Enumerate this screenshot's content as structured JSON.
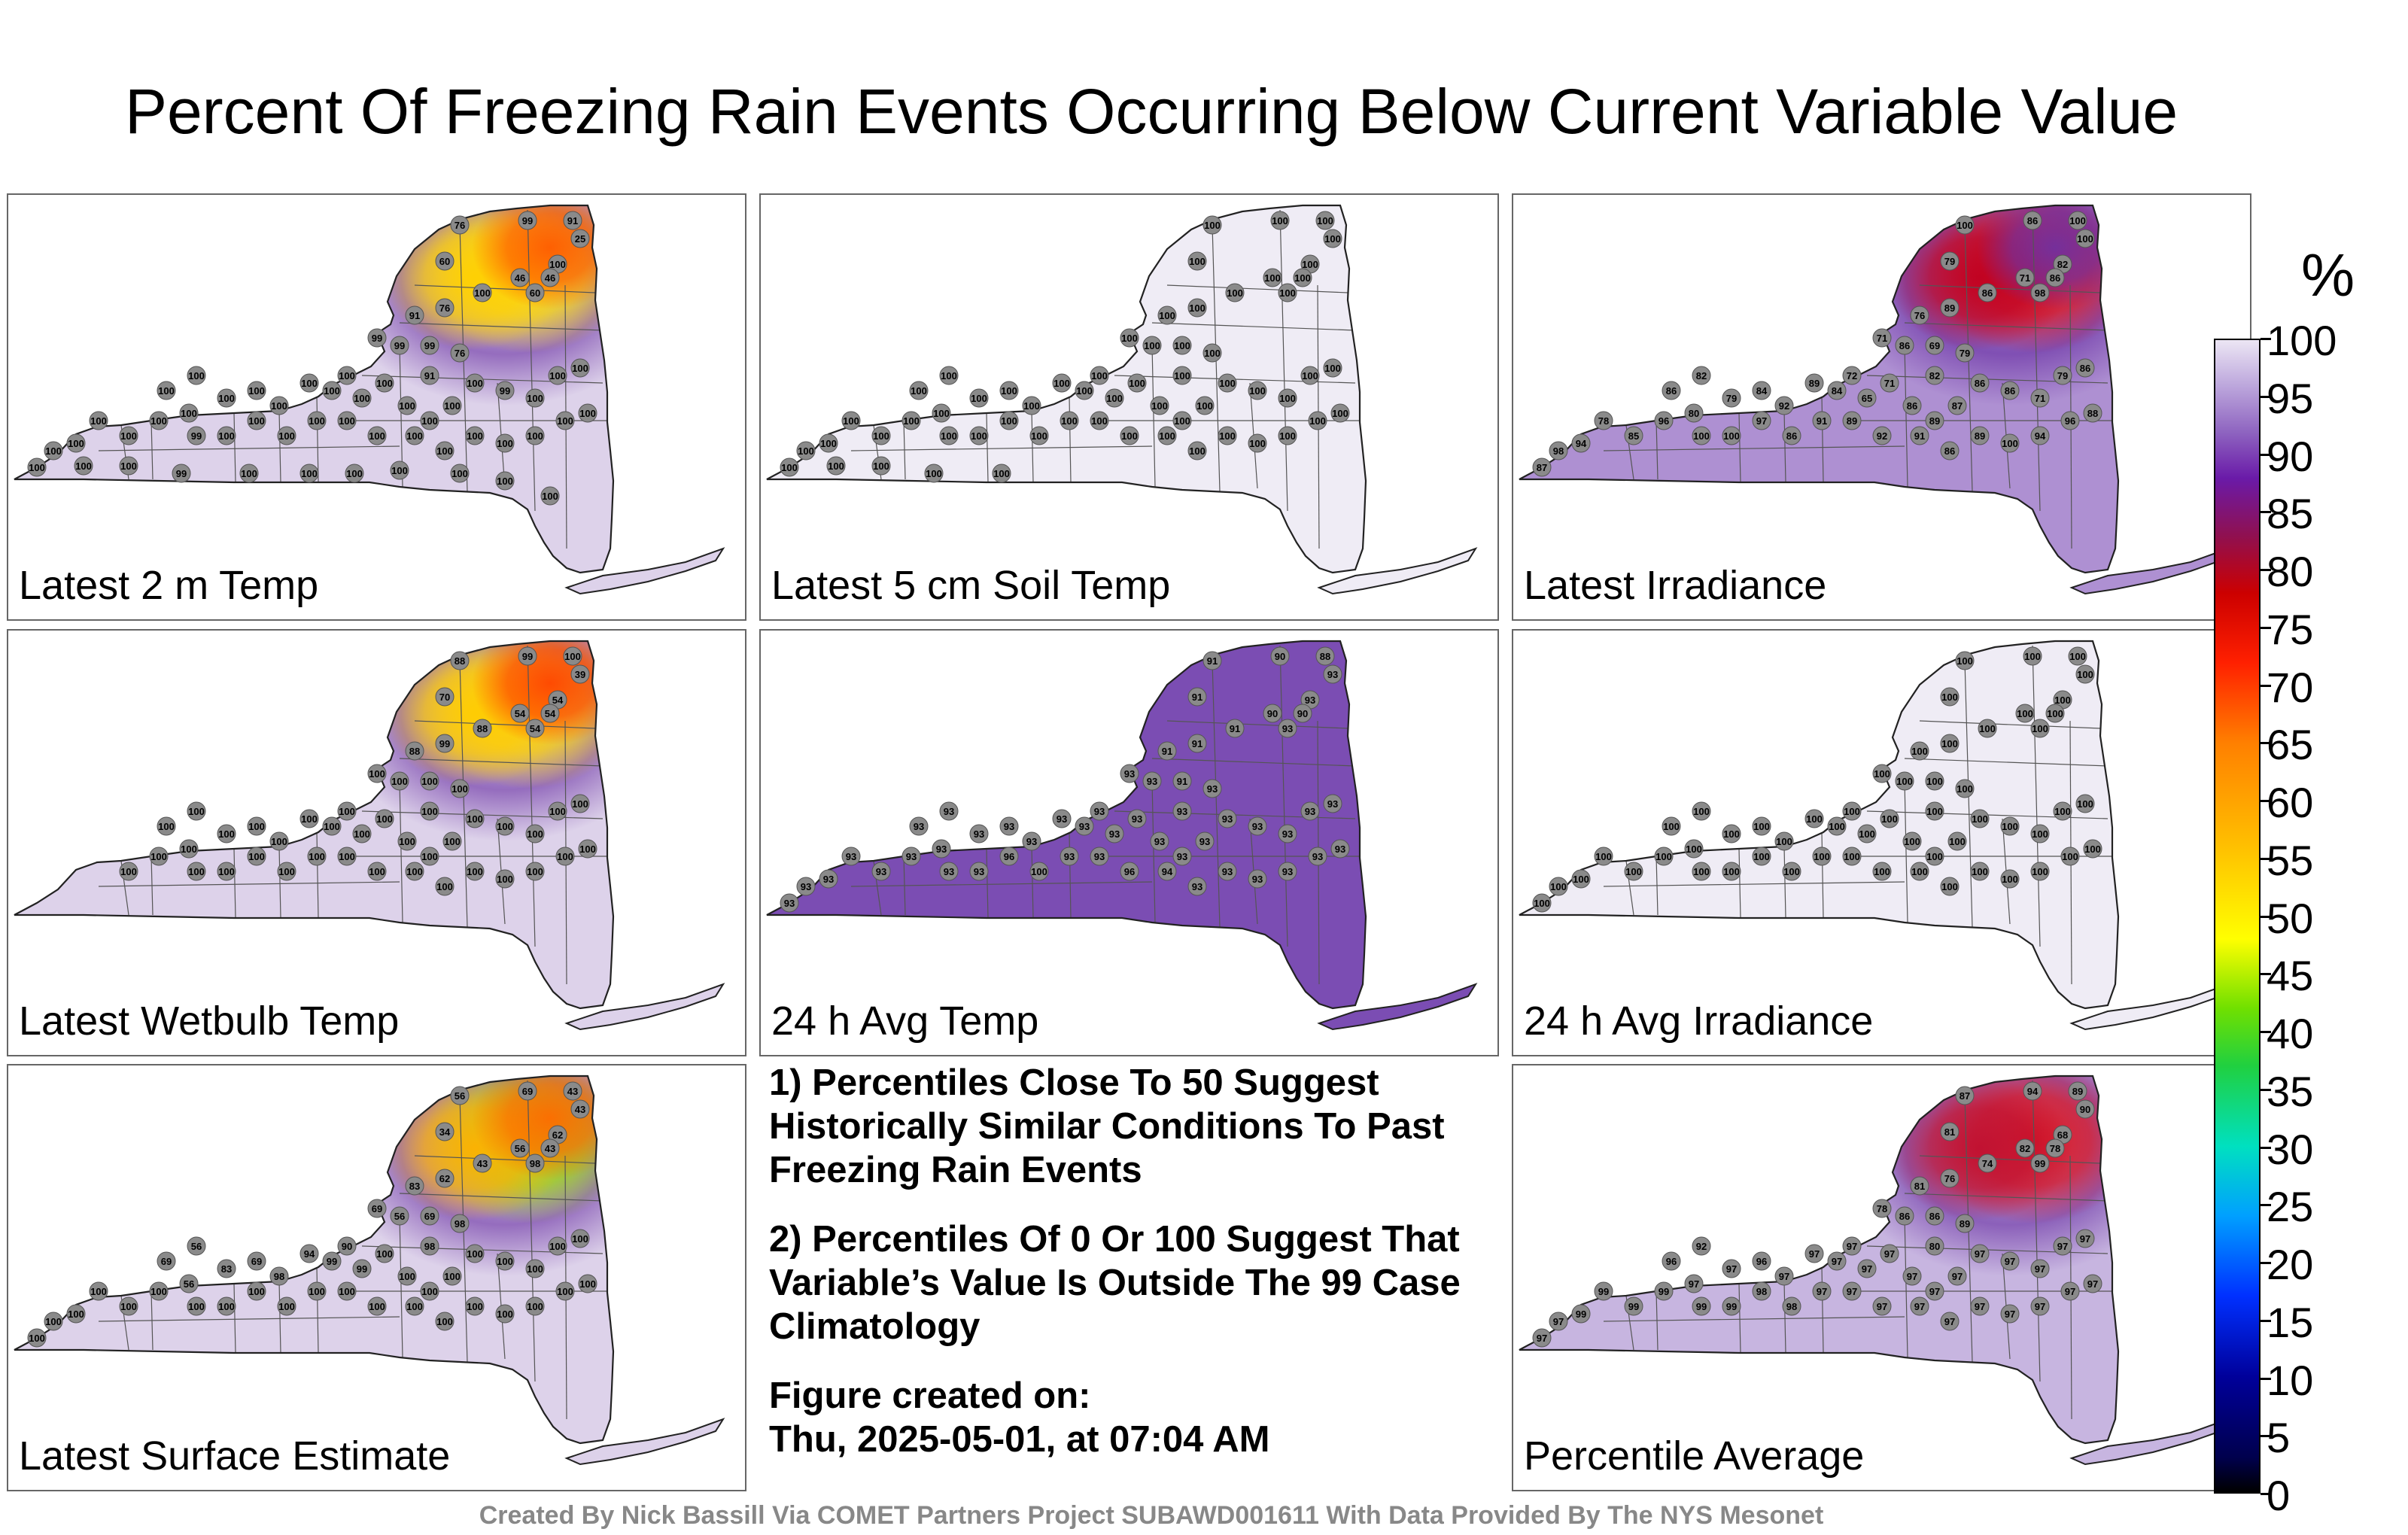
{
  "title": "Percent Of Freezing Rain Events Occurring Below Current Variable Value",
  "panels": [
    {
      "label": "Latest 2 m Temp",
      "fill": "#ddd2ea",
      "stations": [
        "76",
        "99",
        "91",
        "25",
        "60",
        "100",
        "46",
        "46",
        "60",
        "100",
        "76",
        "91",
        "99",
        "99",
        "76",
        "91",
        "99",
        "100",
        "100",
        "100",
        "100",
        "100",
        "100",
        "100",
        "100",
        "100",
        "100",
        "100",
        "100",
        "100",
        "100",
        "100",
        "99",
        "100",
        "100",
        "100",
        "100",
        "100",
        "100",
        "100",
        "100",
        "100",
        "100",
        "100",
        "100",
        "100",
        "100",
        "100",
        "100",
        "99",
        "100",
        "100",
        "100",
        "100",
        "100",
        "100",
        "100",
        "100",
        "99",
        "100",
        "100",
        "100",
        "100",
        "100",
        "100",
        "100"
      ],
      "hot": [
        {
          "v": 25,
          "c": "#ffe000"
        },
        {
          "v": 46,
          "c": "#ffd000"
        },
        {
          "v": 60,
          "c": "#ff5a00"
        }
      ]
    },
    {
      "label": "Latest 5 cm Soil Temp",
      "fill": "#efecf5",
      "stations": [
        "100",
        "100",
        "100",
        "100",
        "100",
        "100",
        "100",
        "100",
        "100",
        "100",
        "100",
        "100",
        "100",
        "100",
        "100",
        "100",
        "100",
        "100",
        "100",
        "100",
        "100",
        "100",
        "100",
        "100",
        "100",
        "100",
        "100",
        "100",
        "100",
        "100",
        "100",
        "100",
        "100",
        "100",
        "100",
        "100",
        "100",
        "100",
        "100",
        "100",
        "100",
        "100",
        "100",
        "100",
        "100",
        "100",
        "100",
        "100",
        "100",
        "100",
        "100",
        "100",
        "100",
        "100",
        "100",
        "100",
        "100",
        "100",
        "100",
        "100"
      ],
      "hot": []
    },
    {
      "label": "Latest Irradiance",
      "fill": "#ae90d2",
      "stations": [
        "100",
        "86",
        "100",
        "100",
        "79",
        "82",
        "71",
        "86",
        "98",
        "86",
        "89",
        "76",
        "86",
        "69",
        "79",
        "82",
        "71",
        "82",
        "86",
        "80",
        "79",
        "84",
        "92",
        "89",
        "84",
        "72",
        "65",
        "71",
        "86",
        "89",
        "87",
        "86",
        "86",
        "71",
        "79",
        "86",
        "88",
        "96",
        "94",
        "100",
        "89",
        "86",
        "91",
        "92",
        "89",
        "91",
        "86",
        "97",
        "100",
        "100",
        "96",
        "85",
        "78",
        "94",
        "98",
        "87"
      ],
      "hot": [
        {
          "v": 71,
          "c": "#e81010"
        },
        {
          "v": 80,
          "c": "#c00020"
        },
        {
          "v": 86,
          "c": "#7030a0"
        }
      ]
    },
    {
      "label": "Latest Wetbulb Temp",
      "fill": "#ddd2ea",
      "stations": [
        "88",
        "99",
        "100",
        "39",
        "70",
        "54",
        "54",
        "54",
        "54",
        "88",
        "99",
        "88",
        "100",
        "100",
        "100",
        "100",
        "100",
        "100",
        "100",
        "100",
        "100",
        "100",
        "100",
        "100",
        "100",
        "100",
        "100",
        "100",
        "100",
        "100",
        "100",
        "100",
        "100",
        "100",
        "100",
        "100",
        "100",
        "100",
        "100",
        "100",
        "100",
        "100",
        "100",
        "100",
        "100",
        "100",
        "100",
        "100",
        "100",
        "100",
        "100",
        "100"
      ],
      "hot": [
        {
          "v": 39,
          "c": "#ffd800"
        },
        {
          "v": 54,
          "c": "#ffcc00"
        },
        {
          "v": 70,
          "c": "#ff4400"
        }
      ]
    },
    {
      "label": "24 h Avg Temp",
      "fill": "#7b4db3",
      "stations": [
        "91",
        "90",
        "88",
        "93",
        "91",
        "93",
        "90",
        "90",
        "93",
        "91",
        "91",
        "91",
        "93",
        "91",
        "93",
        "93",
        "93",
        "93",
        "93",
        "93",
        "93",
        "93",
        "93",
        "93",
        "93",
        "93",
        "93",
        "93",
        "93",
        "93",
        "93",
        "93",
        "93",
        "93",
        "93",
        "93",
        "93",
        "93",
        "93",
        "93",
        "93",
        "93",
        "94",
        "96",
        "93",
        "93",
        "100",
        "96",
        "93",
        "93",
        "93",
        "93",
        "93",
        "93",
        "93",
        "93"
      ],
      "hot": []
    },
    {
      "label": "24 h Avg Irradiance",
      "fill": "#efecf5",
      "stations": [
        "100",
        "100",
        "100",
        "100",
        "100",
        "100",
        "100",
        "100",
        "100",
        "100",
        "100",
        "100",
        "100",
        "100",
        "100",
        "100",
        "100",
        "100",
        "100",
        "100",
        "100",
        "100",
        "100",
        "100",
        "100",
        "100",
        "100",
        "100",
        "100",
        "100",
        "100",
        "100",
        "100",
        "100",
        "100",
        "100",
        "100",
        "100",
        "100",
        "100",
        "100",
        "100",
        "100",
        "100",
        "100",
        "100",
        "100",
        "100",
        "100",
        "100",
        "100",
        "100",
        "100",
        "100",
        "100",
        "100"
      ],
      "hot": []
    },
    {
      "label": "Latest Surface Estimate",
      "fill": "#ddd2ea",
      "stations": [
        "56",
        "69",
        "43",
        "43",
        "34",
        "62",
        "56",
        "43",
        "98",
        "43",
        "62",
        "83",
        "56",
        "69",
        "98",
        "98",
        "69",
        "56",
        "69",
        "56",
        "83",
        "69",
        "98",
        "94",
        "99",
        "90",
        "99",
        "100",
        "100",
        "100",
        "100",
        "100",
        "100",
        "100",
        "100",
        "100",
        "100",
        "100",
        "100",
        "100",
        "100",
        "100",
        "100",
        "100",
        "100",
        "100",
        "100",
        "100",
        "100",
        "100",
        "100",
        "100",
        "100",
        "100",
        "100",
        "100"
      ],
      "hot": [
        {
          "v": 43,
          "c": "#9be000"
        },
        {
          "v": 56,
          "c": "#ffb000"
        },
        {
          "v": 69,
          "c": "#ff6a00"
        }
      ]
    },
    {
      "label": "Percentile Average",
      "fill": "#c7b5e0",
      "stations": [
        "87",
        "94",
        "89",
        "90",
        "81",
        "68",
        "82",
        "78",
        "99",
        "74",
        "76",
        "81",
        "86",
        "86",
        "89",
        "80",
        "78",
        "92",
        "96",
        "97",
        "97",
        "96",
        "97",
        "97",
        "97",
        "97",
        "97",
        "97",
        "97",
        "97",
        "97",
        "97",
        "97",
        "97",
        "97",
        "97",
        "97",
        "97",
        "97",
        "97",
        "97",
        "97",
        "97",
        "97",
        "97",
        "97",
        "98",
        "98",
        "99",
        "99",
        "99",
        "99",
        "99",
        "99",
        "97",
        "97"
      ],
      "hot": [
        {
          "v": 74,
          "c": "#e01018"
        },
        {
          "v": 80,
          "c": "#c01030"
        }
      ]
    }
  ],
  "notes": [
    "1) Percentiles Close To 50 Suggest Historically Similar Conditions To Past Freezing Rain Events",
    "2) Percentiles Of 0 Or 100 Suggest That Variable’s Value Is Outside The 99 Case Climatology"
  ],
  "created_label": "Figure created on:",
  "created_value": "Thu, 2025-05-01, at 07:04 AM",
  "credit": "Created By Nick Bassill Via COMET Partners Project SUBAWD001611 With Data Provided By The NYS Mesonet",
  "colorbar": {
    "unit": "%",
    "ticks": [
      "100",
      "95",
      "90",
      "85",
      "80",
      "75",
      "70",
      "65",
      "60",
      "55",
      "50",
      "45",
      "40",
      "35",
      "30",
      "25",
      "20",
      "15",
      "10",
      "5",
      "0"
    ],
    "min": 0,
    "max": 100
  }
}
